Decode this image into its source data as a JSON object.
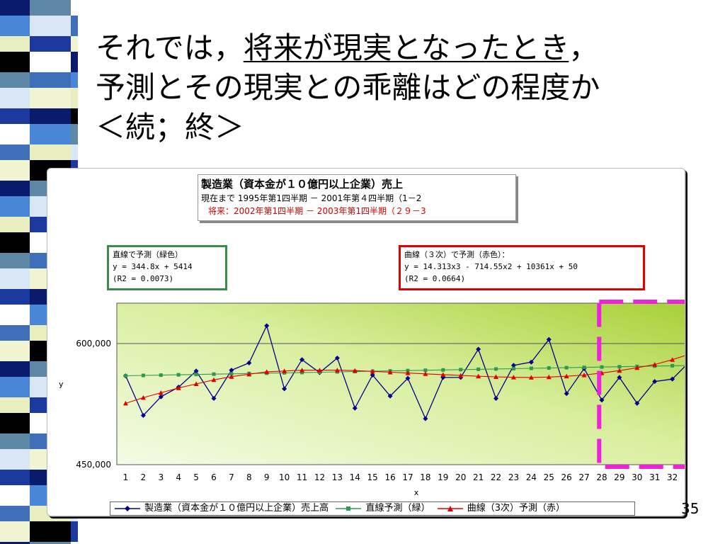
{
  "slide": {
    "title_line1_a": "それでは，",
    "title_line1_b": "将来が現実となったとき",
    "title_line1_c": "，",
    "title_line2": "予測とその現実との乖離はどの程度か",
    "title_line3": "＜続；終＞",
    "page_number": "35"
  },
  "info_box": {
    "title": "製造業（資本金が１０億円以上企業）売上",
    "current": "現在まで 1995年第1四半期 － 2001年第４四半期（1－2",
    "future": "将来：2002年第1四半期 － 2003年第1四半期（２９－3"
  },
  "equations": {
    "linear": [
      "直線で予測（緑色）",
      "y = 344.8x + 5414",
      "(R2 = 0.0073)"
    ],
    "cubic": [
      "曲線（３次）で予測（赤色）：",
      "y = 14.313x3 - 714.55x2 + 10361x + 50",
      "(R2 = 0.0664)"
    ]
  },
  "colors": {
    "actual": "#00008b",
    "linear": "#2e9a50",
    "cubic": "#e00000",
    "highlight": "#ee22dd",
    "plot_bg_light": "#f4fbe6",
    "plot_bg_dark": "#a6cf34"
  },
  "chart_data": {
    "type": "line",
    "xlabel": "x",
    "ylabel": "y",
    "ytick_labels": [
      "600,000",
      "450,000"
    ],
    "yticks": [
      600000,
      450000
    ],
    "ylim": [
      450000,
      650000
    ],
    "x": [
      1,
      2,
      3,
      4,
      5,
      6,
      7,
      8,
      9,
      10,
      11,
      12,
      13,
      14,
      15,
      16,
      17,
      18,
      19,
      20,
      21,
      22,
      23,
      24,
      25,
      26,
      27,
      28,
      29,
      30,
      31,
      32,
      33
    ],
    "highlight_range": [
      28,
      33
    ],
    "grid": "horizontal-at-ticks",
    "legend_position": "bottom",
    "series": [
      {
        "name": "製造業（資本金が１０億円以上企業）売上高",
        "marker": "diamond",
        "values": [
          560000,
          511000,
          534000,
          546000,
          566000,
          532000,
          567000,
          576000,
          622000,
          544000,
          580000,
          564000,
          582000,
          520000,
          561000,
          535000,
          557000,
          507000,
          558000,
          558000,
          593000,
          532000,
          573000,
          577000,
          605000,
          538000,
          569000,
          530000,
          558000,
          526000,
          553000,
          556000,
          578000
        ]
      },
      {
        "name": "直線予測（緑）",
        "marker": "square",
        "values": [
          560100,
          560500,
          560900,
          561300,
          561700,
          562100,
          562500,
          562900,
          563300,
          563700,
          564100,
          564500,
          564900,
          565300,
          565700,
          566100,
          566500,
          566900,
          567300,
          567700,
          568100,
          568500,
          568900,
          569300,
          569700,
          570100,
          570500,
          570900,
          571300,
          571700,
          572100,
          572500,
          572900
        ]
      },
      {
        "name": "曲線（3次）予測（赤）",
        "marker": "triangle",
        "values": [
          526000,
          533000,
          539000,
          545000,
          550000,
          555000,
          559000,
          562000,
          565000,
          566000,
          567000,
          567000,
          567000,
          566500,
          565500,
          564500,
          563500,
          562500,
          561500,
          560500,
          559500,
          558800,
          558200,
          558000,
          558500,
          559500,
          561000,
          563500,
          566500,
          570000,
          574000,
          580000,
          587000
        ]
      }
    ]
  }
}
